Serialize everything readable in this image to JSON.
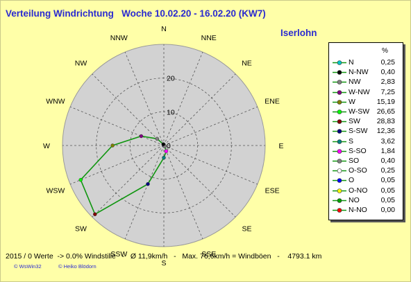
{
  "header": {
    "title": "Verteilung Windrichtung   Woche 10.02.20 - 16.02.20 (KW7)",
    "location": "Iserlohn"
  },
  "legend": {
    "unit": "%",
    "items": [
      {
        "label": "N",
        "value": "0,25",
        "color": "#00c8c8"
      },
      {
        "label": "N-NW",
        "value": "0,40",
        "color": "#000000"
      },
      {
        "label": "NW",
        "value": "2,83",
        "color": "#808080"
      },
      {
        "label": "W-NW",
        "value": "7,25",
        "color": "#800080"
      },
      {
        "label": "W",
        "value": "15,19",
        "color": "#808000"
      },
      {
        "label": "W-SW",
        "value": "26,65",
        "color": "#00ff00"
      },
      {
        "label": "SW",
        "value": "28,83",
        "color": "#800000"
      },
      {
        "label": "S-SW",
        "value": "12,36",
        "color": "#000080"
      },
      {
        "label": "S",
        "value": "3,62",
        "color": "#008080"
      },
      {
        "label": "S-SO",
        "value": "1,84",
        "color": "#ff00ff"
      },
      {
        "label": "SO",
        "value": "0,40",
        "color": "#808080"
      },
      {
        "label": "O-SO",
        "value": "0,25",
        "color": "#ffffff"
      },
      {
        "label": "O",
        "value": "0,05",
        "color": "#0000ff"
      },
      {
        "label": "O-NO",
        "value": "0,05",
        "color": "#ffff00"
      },
      {
        "label": "NO",
        "value": "0,05",
        "color": "#00a000"
      },
      {
        "label": "N-NO",
        "value": "0,00",
        "color": "#ff0000"
      }
    ]
  },
  "footer": {
    "stats": "2015 / 0 Werte  -> 0.0% Windstille   -   Ø 11,9km/h   -   Max. 76,6km/h = Windböen   -    4793.1 km",
    "copyright_left": "© WsWin32",
    "copyright_right": "© Heiko Blödorn"
  },
  "chart_data": {
    "type": "radar",
    "unit": "%",
    "directions": [
      "N",
      "NNE",
      "NE",
      "ENE",
      "E",
      "ESE",
      "SE",
      "SSE",
      "S",
      "SSW",
      "SW",
      "WSW",
      "W",
      "WNW",
      "NW",
      "NNW"
    ],
    "radial_ticks": [
      "0",
      "10",
      "20"
    ],
    "rmax": 30,
    "series": [
      {
        "values": [
          0.25,
          0.0,
          0.05,
          0.05,
          0.05,
          0.25,
          0.4,
          1.84,
          3.62,
          12.36,
          28.83,
          26.65,
          15.19,
          7.25,
          2.83,
          0.4
        ],
        "color": "#119611"
      }
    ],
    "point_colors": [
      "#00c8c8",
      "#ff0000",
      "#00a000",
      "#ffff00",
      "#0000ff",
      "#ffffff",
      "#808080",
      "#ff00ff",
      "#008080",
      "#000080",
      "#800000",
      "#00ff00",
      "#808000",
      "#800080",
      "#808080",
      "#000000"
    ],
    "grid": true,
    "legend_position": "right"
  }
}
